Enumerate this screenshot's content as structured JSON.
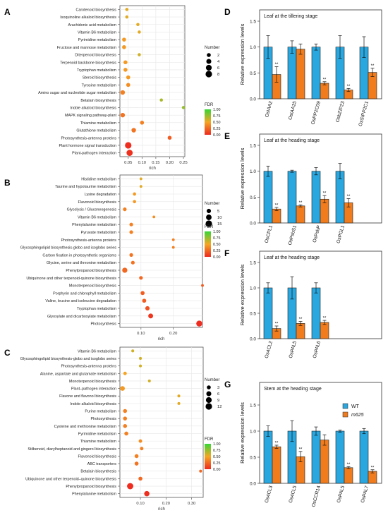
{
  "chart_data": [
    {
      "panel": "A",
      "type": "scatter",
      "xlabel": "rich",
      "xlim": [
        0.02,
        0.255
      ],
      "xticks": [
        "0.05",
        "0.10",
        "0.15",
        "0.20",
        "0.25"
      ],
      "xtick_values": [
        0.05,
        0.1,
        0.15,
        0.2,
        0.25
      ],
      "legend_size_title": "Number",
      "legend_sizes": [
        2,
        4,
        6,
        8
      ],
      "legend_color_title": "FDR",
      "legend_colors": [
        "1.00",
        "0.75",
        "0.50",
        "0.25",
        "0.00"
      ],
      "points": [
        {
          "term": "Carotenoid biosynthesis",
          "rich": 0.045,
          "count": 1,
          "fdr": 0.55
        },
        {
          "term": "Isoquinoline alkaloid biosynthesis",
          "rich": 0.045,
          "count": 1,
          "fdr": 0.55
        },
        {
          "term": "Arachidonic acid metabolism",
          "rich": 0.085,
          "count": 1,
          "fdr": 0.55
        },
        {
          "term": "Vitamin B6 metabolism",
          "rich": 0.09,
          "count": 1,
          "fdr": 0.55
        },
        {
          "term": "Pyrimidine metabolism",
          "rich": 0.035,
          "count": 2,
          "fdr": 0.45
        },
        {
          "term": "Fructose and mannose metabolism",
          "rich": 0.035,
          "count": 2,
          "fdr": 0.45
        },
        {
          "term": "Diterpenoid biosynthesis",
          "rich": 0.09,
          "count": 1,
          "fdr": 0.6
        },
        {
          "term": "Terpenoid backbone biosynthesis",
          "rich": 0.04,
          "count": 2,
          "fdr": 0.45
        },
        {
          "term": "Tryptophan metabolism",
          "rich": 0.04,
          "count": 2,
          "fdr": 0.45
        },
        {
          "term": "Steroid biosynthesis",
          "rich": 0.05,
          "count": 2,
          "fdr": 0.45
        },
        {
          "term": "Tyrosine metabolism",
          "rich": 0.05,
          "count": 2,
          "fdr": 0.4
        },
        {
          "term": "Amino sugar and nucleotide sugar metabolism",
          "rich": 0.03,
          "count": 3,
          "fdr": 0.35
        },
        {
          "term": "Betalain biosynthesis",
          "rich": 0.17,
          "count": 1,
          "fdr": 0.7
        },
        {
          "term": "Indole alkaloid biosynthesis",
          "rich": 0.25,
          "count": 1,
          "fdr": 0.75
        },
        {
          "term": "MAPK signaling pathway-plant",
          "rich": 0.03,
          "count": 3,
          "fdr": 0.3
        },
        {
          "term": "Thiamine metabolism",
          "rich": 0.1,
          "count": 2,
          "fdr": 0.35
        },
        {
          "term": "Glutathione metabolism",
          "rich": 0.07,
          "count": 3,
          "fdr": 0.3
        },
        {
          "term": "Photosynthesis-antenna proteins",
          "rich": 0.2,
          "count": 2,
          "fdr": 0.2
        },
        {
          "term": "Plant hormone signal transduction",
          "rich": 0.05,
          "count": 8,
          "fdr": 0.02
        },
        {
          "term": "Plant-pathogen interaction",
          "rich": 0.055,
          "count": 7,
          "fdr": 0.03
        }
      ]
    },
    {
      "panel": "B",
      "type": "scatter",
      "xlabel": "rich",
      "xlim": [
        0.035,
        0.29
      ],
      "xticks": [
        "0.10",
        "0.20"
      ],
      "xtick_values": [
        0.1,
        0.2
      ],
      "legend_size_title": "Number",
      "legend_sizes": [
        5,
        10,
        15
      ],
      "legend_color_title": "FDR",
      "legend_colors": [
        "1.00",
        "0.75",
        "0.50",
        "0.25",
        "0.00"
      ],
      "points": [
        {
          "term": "Histidine metabolism",
          "rich": 0.1,
          "count": 1,
          "fdr": 0.55
        },
        {
          "term": "Taurine and hypotaurine metabolism",
          "rich": 0.1,
          "count": 1,
          "fdr": 0.55
        },
        {
          "term": "Lysine degradation",
          "rich": 0.08,
          "count": 2,
          "fdr": 0.45
        },
        {
          "term": "Flavonoid biosynthesis",
          "rich": 0.08,
          "count": 2,
          "fdr": 0.45
        },
        {
          "term": "Glycolysis / Gluconeogenesis",
          "rich": 0.05,
          "count": 3,
          "fdr": 0.35
        },
        {
          "term": "Vitamin B6 metabolism",
          "rich": 0.14,
          "count": 1,
          "fdr": 0.4
        },
        {
          "term": "Phenylalanine metabolism",
          "rich": 0.07,
          "count": 3,
          "fdr": 0.35
        },
        {
          "term": "Pyruvate metabolism",
          "rich": 0.07,
          "count": 3,
          "fdr": 0.35
        },
        {
          "term": "Photosynthesis-antenna proteins",
          "rich": 0.2,
          "count": 1,
          "fdr": 0.35
        },
        {
          "term": "Glycosphingolipid biosynthesis-globo and  isoglobo series",
          "rich": 0.2,
          "count": 1,
          "fdr": 0.35
        },
        {
          "term": "Carbon fixation in photosynthetic organisms",
          "rich": 0.07,
          "count": 3,
          "fdr": 0.3
        },
        {
          "term": "Glycine, serine and threonine metabolism",
          "rich": 0.075,
          "count": 3,
          "fdr": 0.3
        },
        {
          "term": "Phenylpropanoid biosynthesis",
          "rich": 0.05,
          "count": 8,
          "fdr": 0.25
        },
        {
          "term": "Ubiquinone and other terpenoid-quinone biosynthesis",
          "rich": 0.1,
          "count": 3,
          "fdr": 0.25
        },
        {
          "term": "Monoterpenoid biosynthesis",
          "rich": 0.29,
          "count": 1,
          "fdr": 0.2
        },
        {
          "term": "Porphyrin and chlorophyll metabolism",
          "rich": 0.105,
          "count": 4,
          "fdr": 0.2
        },
        {
          "term": "Valine, leucine and isoleucine degradation",
          "rich": 0.11,
          "count": 4,
          "fdr": 0.2
        },
        {
          "term": "Tryptophan metabolism",
          "rich": 0.12,
          "count": 5,
          "fdr": 0.15
        },
        {
          "term": "Glyoxylate and dicarboxylate metabolism",
          "rich": 0.13,
          "count": 7,
          "fdr": 0.05
        },
        {
          "term": "Photosynthesis",
          "rich": 0.28,
          "count": 12,
          "fdr": 0.01
        }
      ]
    },
    {
      "panel": "C",
      "type": "scatter",
      "xlabel": "rich",
      "xlim": [
        0.02,
        0.345
      ],
      "xticks": [
        "0.10",
        "0.20",
        "0.30"
      ],
      "xtick_values": [
        0.1,
        0.2,
        0.3
      ],
      "legend_size_title": "Number",
      "legend_sizes": [
        3,
        6,
        9,
        12
      ],
      "legend_color_title": "FDR",
      "legend_colors": [
        "1.00",
        "0.75",
        "0.50",
        "0.25",
        "0.00"
      ],
      "points": [
        {
          "term": "Vitamin B6 metabolism",
          "rich": 0.07,
          "count": 1,
          "fdr": 0.6
        },
        {
          "term": "Glycosphingolipid biosynthesis-globo and isoglobo series",
          "rich": 0.1,
          "count": 1,
          "fdr": 0.6
        },
        {
          "term": "Photosynthesis-antenna proteins",
          "rich": 0.1,
          "count": 1,
          "fdr": 0.6
        },
        {
          "term": "Alanine, aspartate and glutamate metabolism",
          "rich": 0.04,
          "count": 2,
          "fdr": 0.5
        },
        {
          "term": "Monoterpenoid biosynthesis",
          "rich": 0.135,
          "count": 1,
          "fdr": 0.6
        },
        {
          "term": "Plant–pathogen interaction",
          "rich": 0.03,
          "count": 5,
          "fdr": 0.45
        },
        {
          "term": "Flavone and flavonol biosynthesis",
          "rich": 0.25,
          "count": 1,
          "fdr": 0.55
        },
        {
          "term": "Indole alkaloid biosynthesis",
          "rich": 0.25,
          "count": 1,
          "fdr": 0.55
        },
        {
          "term": "Purine metabolism",
          "rich": 0.04,
          "count": 3,
          "fdr": 0.35
        },
        {
          "term": "Photosynthesis",
          "rich": 0.04,
          "count": 3,
          "fdr": 0.35
        },
        {
          "term": "Cysteine and methionine metabolism",
          "rich": 0.04,
          "count": 3,
          "fdr": 0.35
        },
        {
          "term": "Pyrimidine metabolism",
          "rich": 0.045,
          "count": 3,
          "fdr": 0.35
        },
        {
          "term": "Thiamine metabolism",
          "rich": 0.1,
          "count": 2,
          "fdr": 0.4
        },
        {
          "term": "Stilbenoid, diarylheptanoid and gingerol biosynthesis",
          "rich": 0.105,
          "count": 2,
          "fdr": 0.35
        },
        {
          "term": "Flavonoid biosynthesis",
          "rich": 0.085,
          "count": 3,
          "fdr": 0.35
        },
        {
          "term": "ABC transporters",
          "rich": 0.085,
          "count": 3,
          "fdr": 0.3
        },
        {
          "term": "Betalain biosynthesis",
          "rich": 0.335,
          "count": 1,
          "fdr": 0.25
        },
        {
          "term": "Ubiquinone and other terpenoid–quinone biosynthesis",
          "rich": 0.1,
          "count": 3,
          "fdr": 0.25
        },
        {
          "term": "Phenylpropanoid biosynthesis",
          "rich": 0.06,
          "count": 11,
          "fdr": 0.01
        },
        {
          "term": "Phenylalanine metabolism",
          "rich": 0.125,
          "count": 7,
          "fdr": 0.02
        }
      ]
    },
    {
      "panel": "D",
      "type": "bar",
      "title": "Leaf at the tillering stage",
      "ylabel": "Relative expression levels",
      "ylim": [
        0,
        1.5
      ],
      "yticks": [
        "0.0",
        "0.5",
        "1.0",
        "1.5"
      ],
      "categories": [
        "OsIAA2",
        "OsIAA15",
        "OsPP2C09",
        "OsbZIP23",
        "OsSIPP2C1"
      ],
      "series": [
        {
          "name": "WT",
          "values": [
            1.0,
            1.0,
            1.0,
            1.0,
            1.0
          ],
          "errors": [
            0.22,
            0.12,
            0.06,
            0.22,
            0.2
          ]
        },
        {
          "name": "m625",
          "values": [
            0.47,
            0.96,
            0.3,
            0.17,
            0.51
          ],
          "errors": [
            0.15,
            0.1,
            0.03,
            0.03,
            0.08
          ]
        }
      ],
      "significance": [
        "**",
        "",
        "**",
        "**",
        "**"
      ]
    },
    {
      "panel": "E",
      "type": "bar",
      "title": "Leaf at the heading stage",
      "ylabel": "Relative expression levels",
      "ylim": [
        0,
        1.5
      ],
      "yticks": [
        "0.0",
        "0.5",
        "1.0",
        "1.5"
      ],
      "categories": [
        "OsCPL1",
        "OsPsbS1",
        "OsPsbP",
        "OsPGL1"
      ],
      "series": [
        {
          "name": "WT",
          "values": [
            1.0,
            1.0,
            1.0,
            1.0
          ],
          "errors": [
            0.1,
            0.02,
            0.07,
            0.15
          ]
        },
        {
          "name": "m625",
          "values": [
            0.27,
            0.33,
            0.46,
            0.39
          ],
          "errors": [
            0.03,
            0.02,
            0.07,
            0.08
          ]
        }
      ],
      "significance": [
        "**",
        "**",
        "**",
        "**"
      ]
    },
    {
      "panel": "F",
      "type": "bar",
      "title": "Leaf at the heading stage",
      "ylabel": "Relative expression levels",
      "ylim": [
        0,
        1.5
      ],
      "yticks": [
        "0.0",
        "0.5",
        "1.0",
        "1.5"
      ],
      "categories": [
        "Os4CL2",
        "OsPAL5",
        "OsPAL6"
      ],
      "series": [
        {
          "name": "WT",
          "values": [
            1.0,
            1.0,
            1.0
          ],
          "errors": [
            0.1,
            0.22,
            0.1
          ]
        },
        {
          "name": "m625",
          "values": [
            0.2,
            0.3,
            0.32
          ],
          "errors": [
            0.05,
            0.04,
            0.04
          ]
        }
      ],
      "significance": [
        "**",
        "**",
        "**"
      ]
    },
    {
      "panel": "G",
      "type": "bar",
      "title": "Stem at the heading stage",
      "ylabel": "Relative expression levels",
      "ylim": [
        0,
        1.5
      ],
      "yticks": [
        "0.0",
        "0.5",
        "1.0",
        "1.5"
      ],
      "categories": [
        "Os4CL3",
        "Os4CL5",
        "OsCCR14",
        "OsPAL5",
        "OsPAL7"
      ],
      "series": [
        {
          "name": "WT",
          "values": [
            1.0,
            1.0,
            1.0,
            1.0,
            1.0
          ],
          "errors": [
            0.1,
            0.2,
            0.08,
            0.02,
            0.05
          ]
        },
        {
          "name": "m625",
          "values": [
            0.7,
            0.51,
            0.83,
            0.3,
            0.23
          ],
          "errors": [
            0.03,
            0.1,
            0.1,
            0.02,
            0.03
          ]
        }
      ],
      "significance": [
        "**",
        "**",
        "",
        "**",
        "**"
      ],
      "legend": [
        "WT",
        "m625"
      ]
    }
  ],
  "colors": {
    "wt": "#2aa7df",
    "mutant": "#f07c1d",
    "fdr_low": "#ee2a1f",
    "fdr_mid": "#f5a623",
    "fdr_high": "#36d636"
  }
}
